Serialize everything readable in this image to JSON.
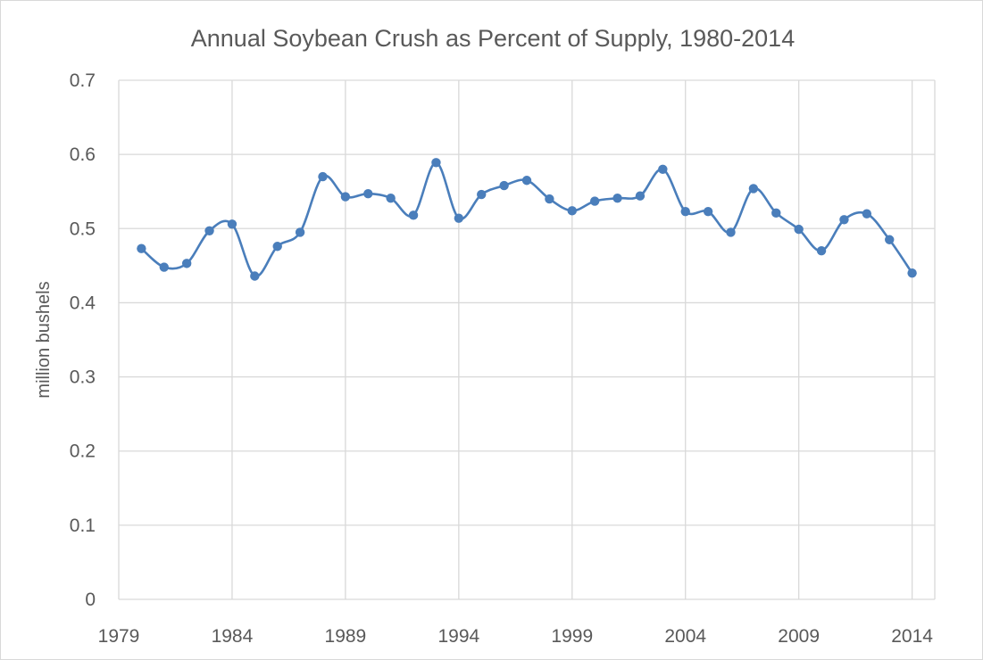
{
  "chart_data": {
    "type": "line",
    "title": "Annual Soybean Crush as Percent of Supply, 1980-2014",
    "xlabel": "",
    "ylabel": "million bushels",
    "xlim": [
      1979,
      2015
    ],
    "ylim": [
      0,
      0.7
    ],
    "x_ticks": [
      "1979",
      "1984",
      "1989",
      "1994",
      "1999",
      "2004",
      "2009",
      "2014"
    ],
    "y_ticks": [
      "0",
      "0.1",
      "0.2",
      "0.3",
      "0.4",
      "0.5",
      "0.6",
      "0.7"
    ],
    "grid": true,
    "smoothed": true,
    "markers": true,
    "series_color": "#4a7ebb",
    "series": [
      {
        "x": [
          1980,
          1981,
          1982,
          1983,
          1984,
          1985,
          1986,
          1987,
          1988,
          1989,
          1990,
          1991,
          1992,
          1993,
          1994,
          1995,
          1996,
          1997,
          1998,
          1999,
          2000,
          2001,
          2002,
          2003,
          2004,
          2005,
          2006,
          2007,
          2008,
          2009,
          2010,
          2011,
          2012,
          2013,
          2014
        ],
        "values": [
          0.473,
          0.448,
          0.453,
          0.497,
          0.506,
          0.436,
          0.476,
          0.495,
          0.57,
          0.543,
          0.547,
          0.541,
          0.518,
          0.589,
          0.514,
          0.546,
          0.558,
          0.565,
          0.54,
          0.524,
          0.537,
          0.541,
          0.544,
          0.58,
          0.523,
          0.523,
          0.495,
          0.554,
          0.521,
          0.499,
          0.47,
          0.512,
          0.52,
          0.485,
          0.44
        ]
      }
    ]
  }
}
